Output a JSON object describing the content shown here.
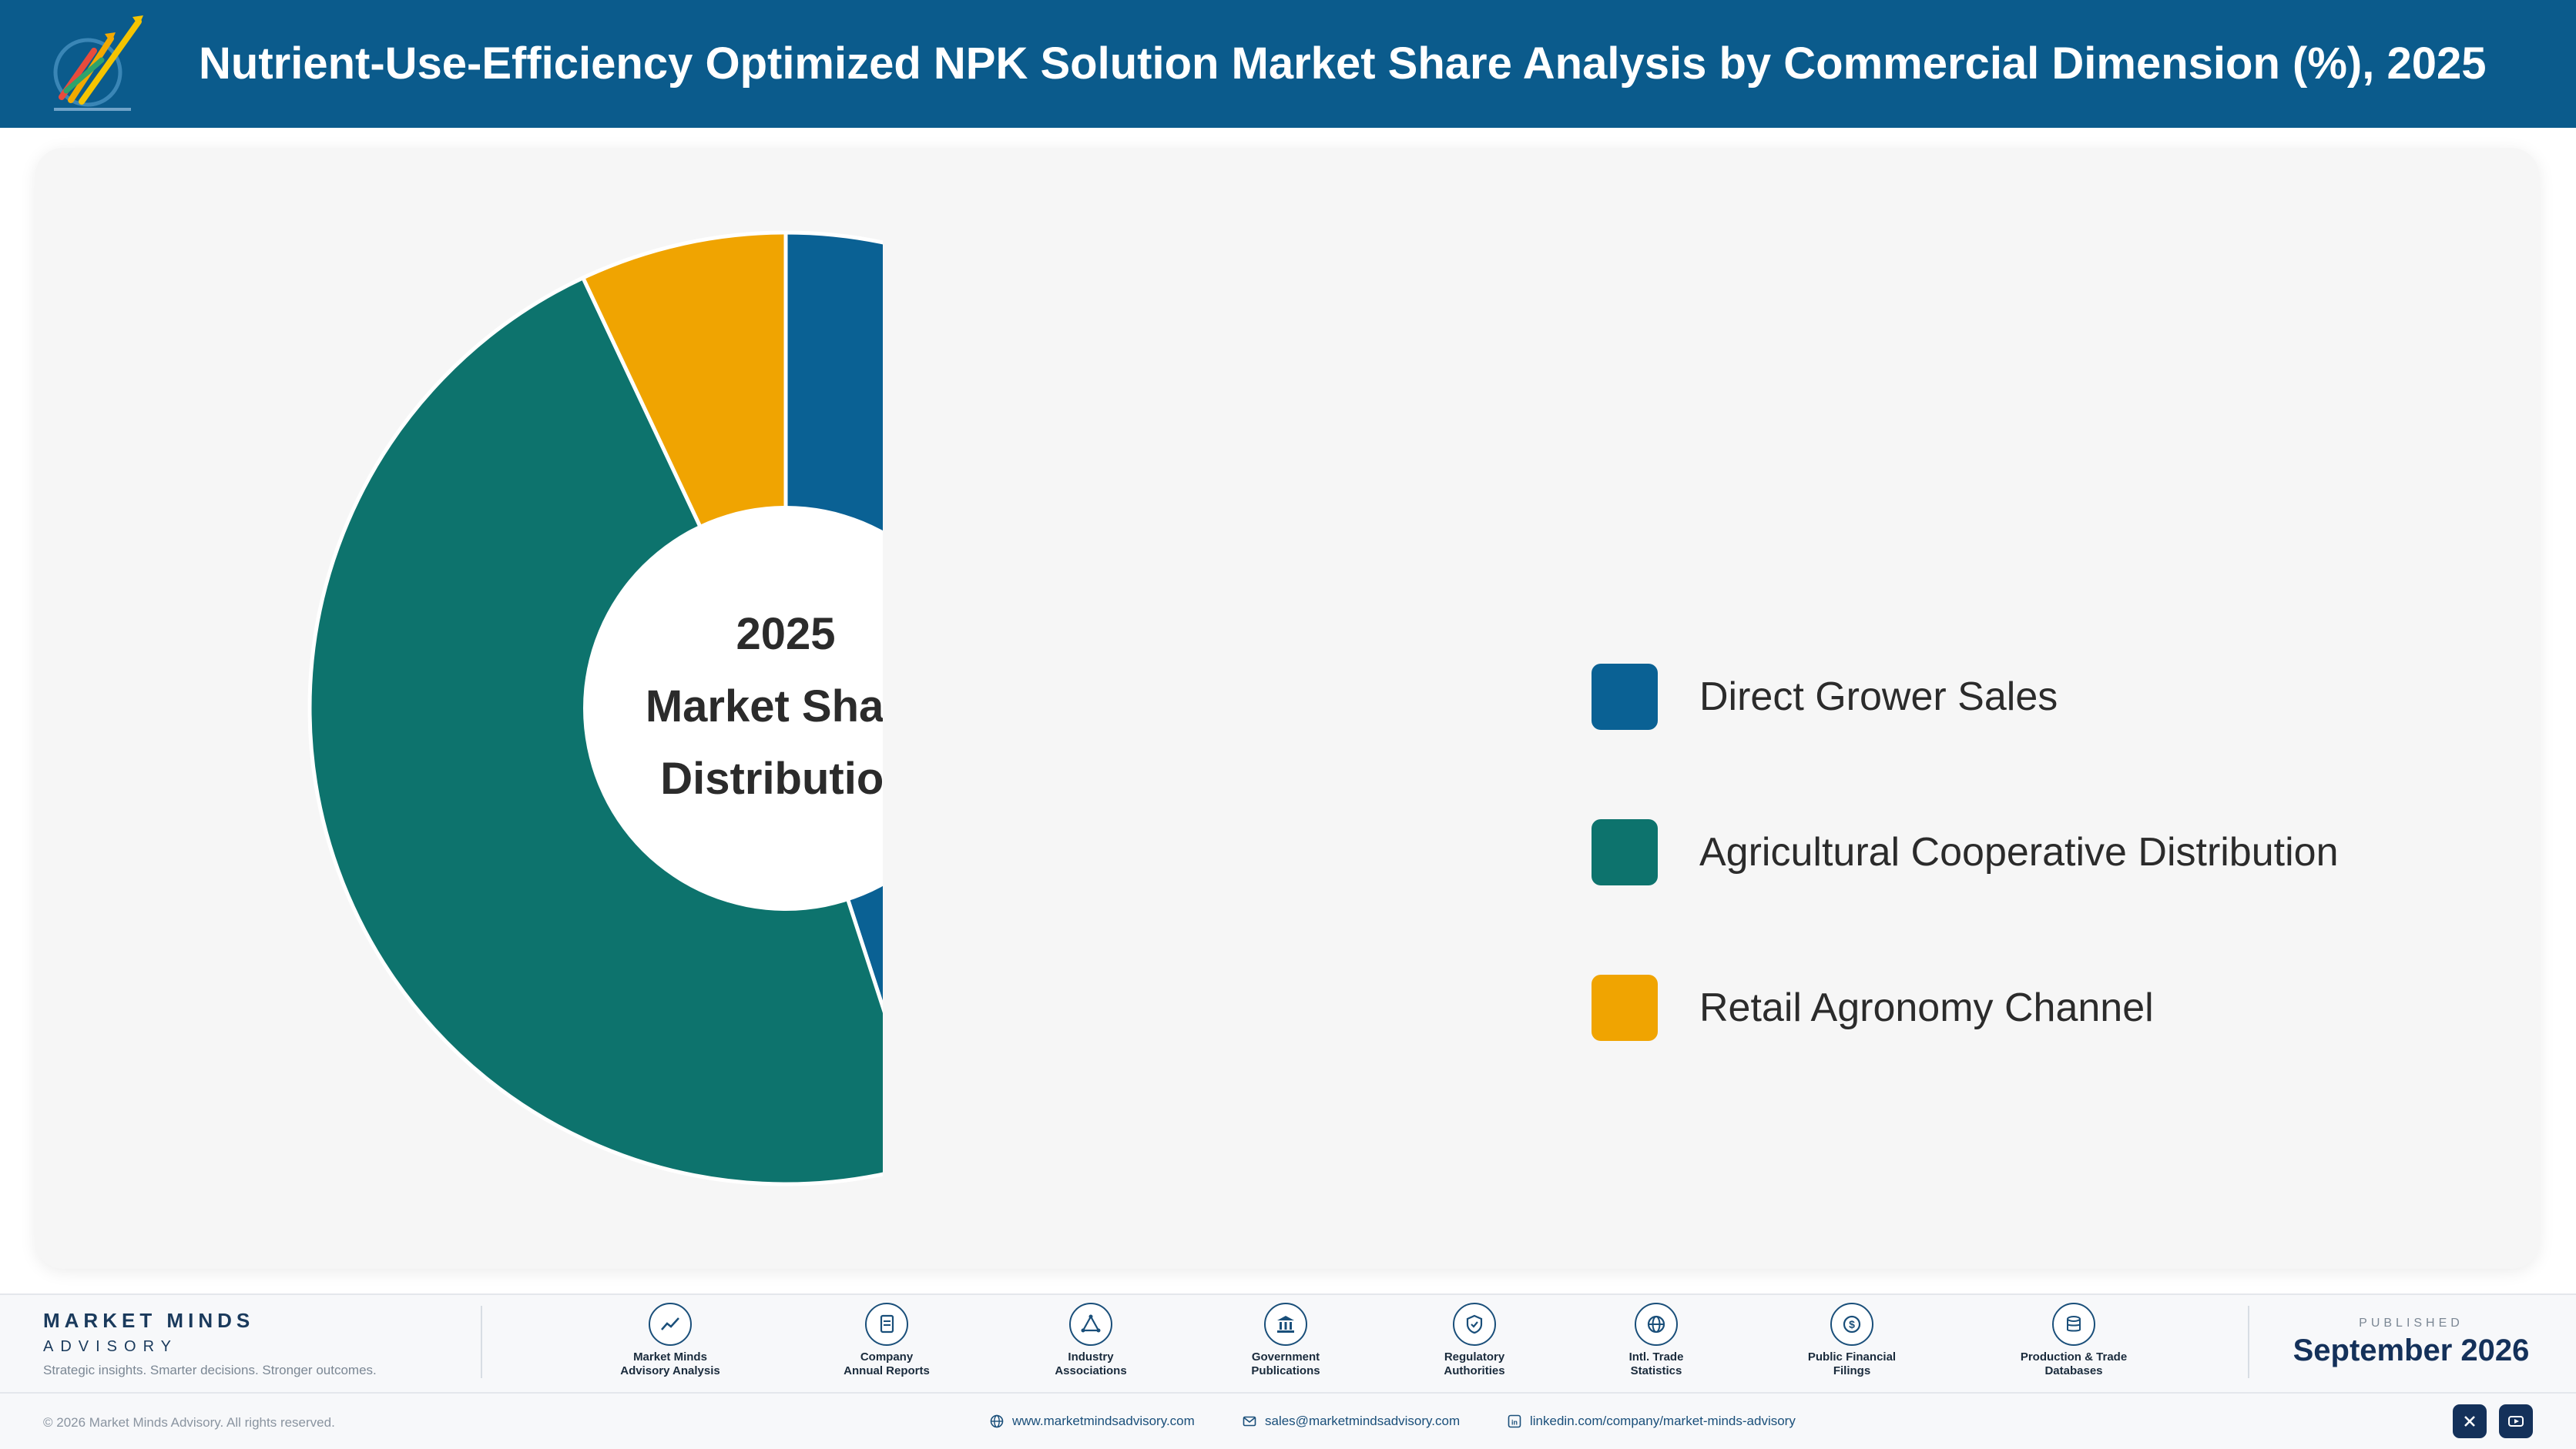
{
  "header": {
    "title": "Nutrient-Use-Efficiency Optimized NPK Solution Market Share Analysis by Commercial Dimension (%), 2025",
    "logo_icon": "market-minds-logo-icon"
  },
  "chart_data": {
    "type": "pie",
    "variant": "donut",
    "center_label": [
      "2025",
      "Market Share",
      "Distribution"
    ],
    "categories": [
      "Direct Grower Sales",
      "Agricultural Cooperative Distribution",
      "Retail Agronomy Channel"
    ],
    "values": [
      45,
      48,
      7
    ],
    "colors": [
      "#0a6194",
      "#0d736d",
      "#f0a401"
    ],
    "legend_position": "right",
    "start_angle": "top, clockwise"
  },
  "footer": {
    "brand": {
      "name": "MARKET MINDS",
      "sub": "ADVISORY",
      "tagline": "Strategic insights. Smarter decisions. Stronger outcomes."
    },
    "sources": [
      {
        "icon": "trend-chart-icon",
        "label_1": "Market Minds",
        "label_2": "Advisory Analysis"
      },
      {
        "icon": "document-icon",
        "label_1": "Company",
        "label_2": "Annual Reports"
      },
      {
        "icon": "network-icon",
        "label_1": "Industry",
        "label_2": "Associations"
      },
      {
        "icon": "government-building-icon",
        "label_1": "Government",
        "label_2": "Publications"
      },
      {
        "icon": "shield-check-icon",
        "label_1": "Regulatory",
        "label_2": "Authorities"
      },
      {
        "icon": "globe-icon",
        "label_1": "Intl. Trade",
        "label_2": "Statistics"
      },
      {
        "icon": "currency-icon",
        "label_1": "Public Financial",
        "label_2": "Filings"
      },
      {
        "icon": "database-icon",
        "label_1": "Production & Trade",
        "label_2": "Databases"
      }
    ],
    "published_label": "PUBLISHED",
    "published_date": "September 2026",
    "copyright": "© 2026 Market Minds Advisory. All rights reserved.",
    "website": "www.marketmindsadvisory.com",
    "email": "sales@marketmindsadvisory.com",
    "linkedin": "linkedin.com/company/market-minds-advisory",
    "social_icons": [
      "x-icon",
      "youtube-icon"
    ]
  }
}
